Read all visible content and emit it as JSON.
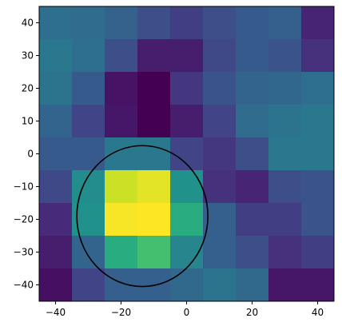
{
  "chart_data": {
    "type": "heatmap",
    "colormap": "viridis",
    "x_tick_labels": [
      "−40",
      "−20",
      "0",
      "20",
      "40"
    ],
    "x_tick_values": [
      -40,
      -20,
      0,
      20,
      40
    ],
    "y_tick_labels": [
      "40",
      "30",
      "20",
      "10",
      "0",
      "−10",
      "−20",
      "−30",
      "−40"
    ],
    "y_tick_values": [
      40,
      30,
      20,
      10,
      0,
      -10,
      -20,
      -30,
      -40
    ],
    "xlim": [
      -45,
      45
    ],
    "ylim": [
      -45,
      45
    ],
    "grid": false,
    "cell_x_edges": [
      -45,
      -35,
      -25,
      -15,
      -5,
      5,
      15,
      25,
      35,
      45
    ],
    "cell_y_edges": [
      45,
      35,
      25,
      15,
      5,
      -5,
      -15,
      -25,
      -35,
      -45
    ],
    "values_top_to_bottom": [
      [
        0.36,
        0.35,
        0.31,
        0.24,
        0.18,
        0.24,
        0.28,
        0.3,
        0.1
      ],
      [
        0.4,
        0.36,
        0.24,
        0.08,
        0.08,
        0.22,
        0.28,
        0.26,
        0.14
      ],
      [
        0.38,
        0.28,
        0.05,
        0.0,
        0.16,
        0.26,
        0.32,
        0.33,
        0.36
      ],
      [
        0.32,
        0.2,
        0.06,
        0.0,
        0.08,
        0.2,
        0.35,
        0.38,
        0.4
      ],
      [
        0.28,
        0.28,
        0.4,
        0.4,
        0.2,
        0.16,
        0.24,
        0.4,
        0.4
      ],
      [
        0.22,
        0.48,
        0.92,
        0.96,
        0.5,
        0.14,
        0.1,
        0.24,
        0.26
      ],
      [
        0.12,
        0.5,
        0.99,
        1.0,
        0.62,
        0.3,
        0.18,
        0.18,
        0.26
      ],
      [
        0.08,
        0.32,
        0.62,
        0.7,
        0.45,
        0.3,
        0.24,
        0.14,
        0.18
      ],
      [
        0.04,
        0.2,
        0.3,
        0.3,
        0.34,
        0.38,
        0.34,
        0.06,
        0.06
      ]
    ],
    "ellipse": {
      "center": [
        -13.5,
        -19
      ],
      "width": 40,
      "height": 43,
      "color": "#000000"
    }
  }
}
